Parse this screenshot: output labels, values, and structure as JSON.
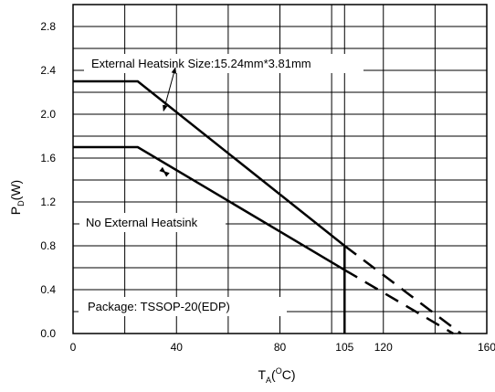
{
  "chart_data": {
    "type": "line",
    "title": "",
    "xlabel": {
      "main": "T",
      "sub": "A",
      "rest": "(",
      "sup": "O",
      "end": "C)"
    },
    "ylabel": {
      "main": "P",
      "sub": "D",
      "rest": "(W)"
    },
    "xlim": [
      0,
      160
    ],
    "ylim": [
      0,
      3.0
    ],
    "x_ticks": [
      0,
      40,
      80,
      105,
      120,
      160
    ],
    "x_tick_labels": [
      "0",
      "40",
      "80",
      "105",
      "120",
      "160"
    ],
    "y_ticks": [
      0.0,
      0.4,
      0.8,
      1.2,
      1.6,
      2.0,
      2.4,
      2.8
    ],
    "y_tick_labels": [
      "0.0",
      "0.4",
      "0.8",
      "1.2",
      "1.6",
      "2.0",
      "2.4",
      "2.8"
    ],
    "grid": true,
    "series": [
      {
        "name": "External Heatsink Size:15.24mm*3.81mm",
        "solid": [
          [
            0,
            2.3
          ],
          [
            25,
            2.3
          ],
          [
            105,
            0.8
          ]
        ],
        "dashed": [
          [
            105,
            0.8
          ],
          [
            150,
            0.0
          ]
        ]
      },
      {
        "name": "No External Heatsink",
        "solid": [
          [
            0,
            1.7
          ],
          [
            25,
            1.7
          ],
          [
            105,
            0.58
          ]
        ],
        "dashed": [
          [
            105,
            0.58
          ],
          [
            147,
            0.0
          ]
        ]
      }
    ],
    "markers": [
      {
        "type": "vline",
        "x": 105,
        "y_from": 0,
        "y_to": 0.8
      }
    ],
    "annotations": [
      {
        "key": "ext",
        "text": "External Heatsink Size:15.24mm*3.81mm",
        "arrow_to": [
          35,
          2.03
        ]
      },
      {
        "key": "noext",
        "text": "No External Heatsink",
        "arrow_to": [
          35,
          1.48
        ]
      },
      {
        "key": "pkg",
        "text": "Package: TSSOP-20(EDP)"
      }
    ]
  }
}
